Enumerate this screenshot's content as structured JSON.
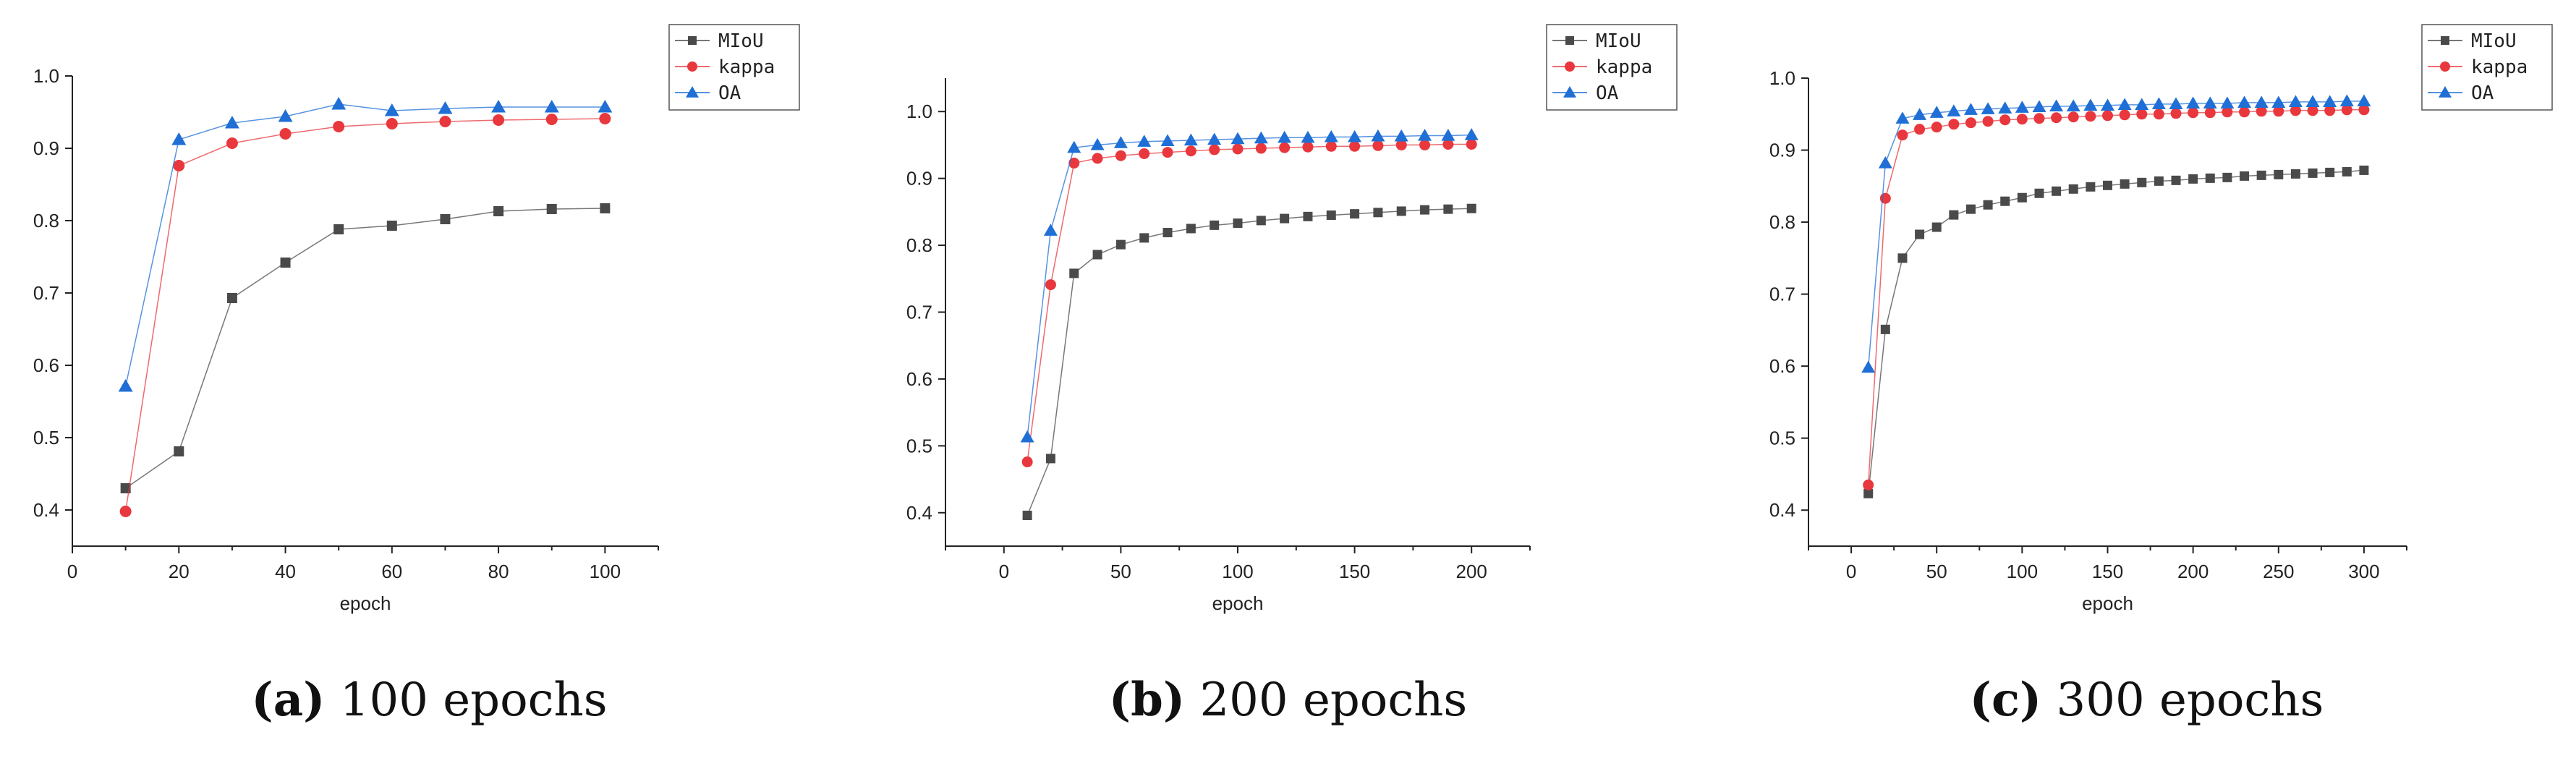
{
  "chart_data": [
    {
      "type": "line",
      "xlabel": "epoch",
      "ylabel": "",
      "xlim": [
        0,
        110
      ],
      "ylim": [
        0.35,
        1.0
      ],
      "xticks": [
        0,
        20,
        40,
        60,
        80,
        100
      ],
      "yticks": [
        0.4,
        0.5,
        0.6,
        0.7,
        0.8,
        0.9,
        1.0
      ],
      "ytick_labels": [
        "0.4",
        "0.5",
        "0.6",
        "0.7",
        "0.8",
        "0.9",
        "1.0"
      ],
      "legend": "top-right outside",
      "x": [
        10,
        20,
        30,
        40,
        50,
        60,
        70,
        80,
        90,
        100
      ],
      "series": [
        {
          "name": "MIoU",
          "color": "#4a4a4a",
          "marker": "square",
          "values": [
            0.43,
            0.481,
            0.693,
            0.742,
            0.788,
            0.793,
            0.802,
            0.813,
            0.816,
            0.817
          ]
        },
        {
          "name": "kappa",
          "color": "#e8383d",
          "marker": "circle",
          "values": [
            0.398,
            0.876,
            0.907,
            0.92,
            0.93,
            0.934,
            0.937,
            0.939,
            0.94,
            0.941
          ]
        },
        {
          "name": "OA",
          "color": "#1f6fd6",
          "marker": "triangle",
          "values": [
            0.571,
            0.912,
            0.935,
            0.944,
            0.961,
            0.952,
            0.955,
            0.957,
            0.957,
            0.957
          ]
        }
      ]
    },
    {
      "type": "line",
      "xlabel": "epoch",
      "ylabel": "",
      "xlim": [
        -25,
        225
      ],
      "ylim": [
        0.35,
        1.05
      ],
      "xticks": [
        0,
        50,
        100,
        150,
        200
      ],
      "yticks": [
        0.4,
        0.5,
        0.6,
        0.7,
        0.8,
        0.9,
        1.0
      ],
      "ytick_labels": [
        "0.4",
        "0.5",
        "0.6",
        "0.7",
        "0.8",
        "0.9",
        "1.0"
      ],
      "legend": "top-right outside",
      "x": [
        10,
        20,
        30,
        40,
        50,
        60,
        70,
        80,
        90,
        100,
        110,
        120,
        130,
        140,
        150,
        160,
        170,
        180,
        190,
        200
      ],
      "series": [
        {
          "name": "MIoU",
          "color": "#4a4a4a",
          "marker": "square",
          "values": [
            0.396,
            0.481,
            0.758,
            0.786,
            0.801,
            0.811,
            0.819,
            0.825,
            0.83,
            0.833,
            0.837,
            0.84,
            0.843,
            0.845,
            0.847,
            0.849,
            0.851,
            0.853,
            0.854,
            0.855
          ]
        },
        {
          "name": "kappa",
          "color": "#e8383d",
          "marker": "circle",
          "values": [
            0.476,
            0.741,
            0.923,
            0.93,
            0.934,
            0.937,
            0.939,
            0.941,
            0.943,
            0.944,
            0.945,
            0.946,
            0.947,
            0.948,
            0.948,
            0.949,
            0.95,
            0.95,
            0.951,
            0.951
          ]
        },
        {
          "name": "OA",
          "color": "#1f6fd6",
          "marker": "triangle",
          "values": [
            0.513,
            0.822,
            0.946,
            0.95,
            0.953,
            0.955,
            0.956,
            0.957,
            0.958,
            0.959,
            0.96,
            0.961,
            0.961,
            0.962,
            0.962,
            0.963,
            0.963,
            0.964,
            0.964,
            0.965
          ]
        }
      ]
    },
    {
      "type": "line",
      "xlabel": "epoch",
      "ylabel": "",
      "xlim": [
        -25,
        325
      ],
      "ylim": [
        0.35,
        1.0
      ],
      "xticks": [
        0,
        50,
        100,
        150,
        200,
        250,
        300
      ],
      "yticks": [
        0.4,
        0.5,
        0.6,
        0.7,
        0.8,
        0.9,
        1.0
      ],
      "ytick_labels": [
        "0.4",
        "0.5",
        "0.6",
        "0.7",
        "0.8",
        "0.9",
        "1.0"
      ],
      "legend": "top-right outside",
      "x": [
        10,
        20,
        30,
        40,
        50,
        60,
        70,
        80,
        90,
        100,
        110,
        120,
        130,
        140,
        150,
        160,
        170,
        180,
        190,
        200,
        210,
        220,
        230,
        240,
        250,
        260,
        270,
        280,
        290,
        300
      ],
      "series": [
        {
          "name": "MIoU",
          "color": "#4a4a4a",
          "marker": "square",
          "values": [
            0.423,
            0.651,
            0.75,
            0.783,
            0.793,
            0.81,
            0.818,
            0.824,
            0.829,
            0.834,
            0.84,
            0.843,
            0.846,
            0.849,
            0.851,
            0.853,
            0.855,
            0.857,
            0.858,
            0.86,
            0.861,
            0.862,
            0.864,
            0.865,
            0.866,
            0.867,
            0.868,
            0.869,
            0.87,
            0.872
          ]
        },
        {
          "name": "kappa",
          "color": "#e8383d",
          "marker": "circle",
          "values": [
            0.435,
            0.833,
            0.921,
            0.929,
            0.932,
            0.936,
            0.938,
            0.94,
            0.942,
            0.943,
            0.944,
            0.945,
            0.946,
            0.947,
            0.948,
            0.949,
            0.95,
            0.95,
            0.951,
            0.952,
            0.952,
            0.953,
            0.953,
            0.954,
            0.954,
            0.955,
            0.955,
            0.955,
            0.956,
            0.956
          ]
        },
        {
          "name": "OA",
          "color": "#1f6fd6",
          "marker": "triangle",
          "values": [
            0.598,
            0.882,
            0.944,
            0.949,
            0.952,
            0.954,
            0.956,
            0.957,
            0.958,
            0.959,
            0.96,
            0.961,
            0.961,
            0.962,
            0.962,
            0.963,
            0.963,
            0.964,
            0.964,
            0.965,
            0.965,
            0.965,
            0.966,
            0.966,
            0.966,
            0.967,
            0.967,
            0.967,
            0.968,
            0.968
          ]
        }
      ]
    }
  ],
  "captions": [
    {
      "letter": "(a)",
      "text": "100 epochs"
    },
    {
      "letter": "(b)",
      "text": "200 epochs"
    },
    {
      "letter": "(c)",
      "text": "300 epochs"
    }
  ]
}
